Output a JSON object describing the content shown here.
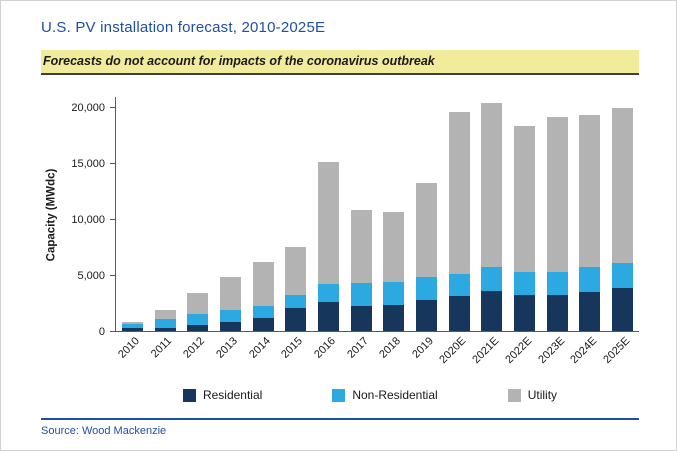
{
  "title": "U.S. PV installation forecast, 2010-2025E",
  "subtitle": "Forecasts do not account for impacts of the coronavirus outbreak",
  "source": "Source: Wood Mackenzie",
  "colors": {
    "title_blue": "#1F4FA5",
    "highlight_yellow": "#F1EC9B",
    "residential": "#16365C",
    "non_residential": "#2BA9E0",
    "utility": "#B3B3B3",
    "axis": "#595959"
  },
  "chart_data": {
    "type": "bar",
    "stacked": true,
    "title": "",
    "xlabel": "",
    "ylabel": "Capacity (MWdc)",
    "ylim": [
      0,
      21000
    ],
    "grid": false,
    "legend_position": "bottom",
    "y_ticks": [
      {
        "value": 0,
        "label": "0"
      },
      {
        "value": 5000,
        "label": "5,000"
      },
      {
        "value": 10000,
        "label": "10,000"
      },
      {
        "value": 15000,
        "label": "15,000"
      },
      {
        "value": 20000,
        "label": "20,000"
      }
    ],
    "categories": [
      "2010",
      "2011",
      "2012",
      "2013",
      "2014",
      "2015",
      "2016",
      "2017",
      "2018",
      "2019",
      "2020E",
      "2021E",
      "2022E",
      "2023E",
      "2024E",
      "2025E"
    ],
    "series": [
      {
        "name": "Residential",
        "color": "#16365C",
        "values": [
          250,
          300,
          500,
          800,
          1200,
          2100,
          2600,
          2200,
          2300,
          2800,
          3100,
          3600,
          3200,
          3200,
          3500,
          3800
        ]
      },
      {
        "name": "Non-Residential",
        "color": "#2BA9E0",
        "values": [
          350,
          800,
          1000,
          1100,
          1000,
          1100,
          1600,
          2100,
          2100,
          2000,
          2000,
          2100,
          2100,
          2100,
          2200,
          2300
        ]
      },
      {
        "name": "Utility",
        "color": "#B3B3B3",
        "values": [
          250,
          800,
          1900,
          2900,
          4000,
          4300,
          10900,
          6500,
          6200,
          8400,
          14500,
          14700,
          13000,
          13800,
          13600,
          13800
        ]
      }
    ],
    "totals": [
      850,
      1900,
      3400,
      4800,
      6200,
      7500,
      15100,
      10800,
      10600,
      13200,
      19600,
      20400,
      18300,
      19100,
      19300,
      19900
    ]
  }
}
